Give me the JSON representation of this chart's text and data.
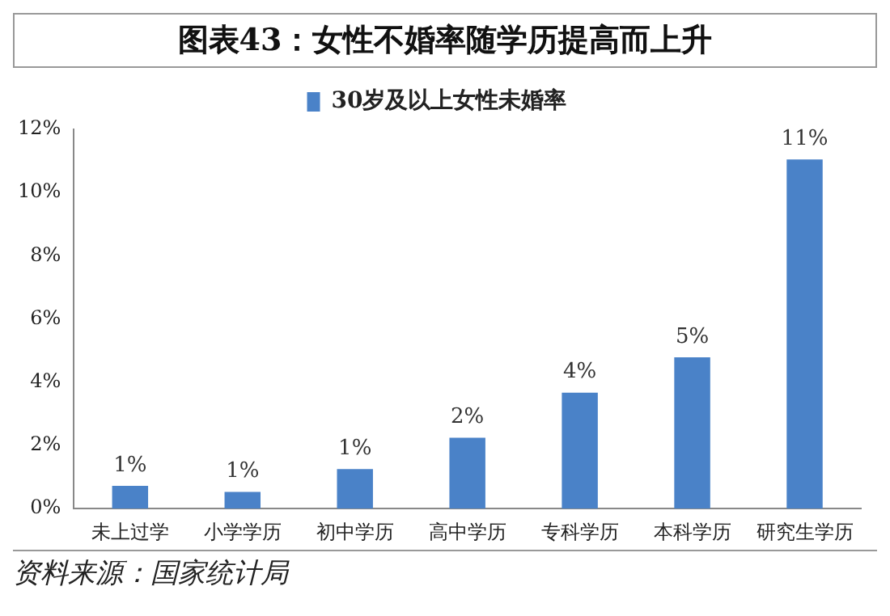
{
  "chart_data": {
    "type": "bar",
    "title": "图表43：女性不婚率随学历提高而上升",
    "categories": [
      "未上过学",
      "小学学历",
      "初中学历",
      "高中学历",
      "专科学历",
      "本科学历",
      "研究生学历"
    ],
    "series": [
      {
        "name": "30岁及以上女性未婚率",
        "color": "#4a82c8",
        "values": [
          0.72,
          0.53,
          1.25,
          2.24,
          3.67,
          4.79,
          11.05
        ],
        "value_labels": [
          "1%",
          "1%",
          "1%",
          "2%",
          "4%",
          "5%",
          "11%"
        ]
      }
    ],
    "ylim": [
      0,
      12
    ],
    "yticks": [
      {
        "value": 0,
        "label": "0%"
      },
      {
        "value": 2,
        "label": "2%"
      },
      {
        "value": 4,
        "label": "4%"
      },
      {
        "value": 6,
        "label": "6%"
      },
      {
        "value": 8,
        "label": "8%"
      },
      {
        "value": 10,
        "label": "10%"
      },
      {
        "value": 12,
        "label": "12%"
      }
    ],
    "grid": false,
    "legend": "top",
    "annotations": [
      "资料来源：国家统计局"
    ]
  }
}
